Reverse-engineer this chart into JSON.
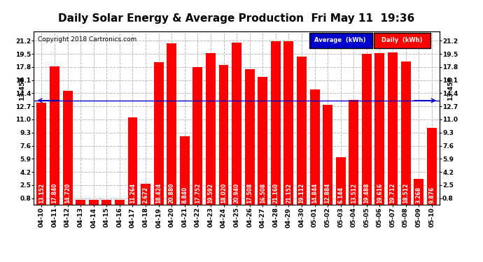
{
  "title": "Daily Solar Energy & Average Production  Fri May 11  19:36",
  "copyright": "Copyright 2018 Cartronics.com",
  "average_label": "13.458",
  "average_value": 13.458,
  "yticks": [
    0.8,
    2.5,
    4.2,
    5.9,
    7.6,
    9.3,
    11.0,
    12.7,
    14.4,
    16.1,
    17.8,
    19.5,
    21.2
  ],
  "ylim": [
    0.0,
    22.4
  ],
  "bar_color": "#FF0000",
  "bg_color": "#FFFFFF",
  "grid_color": "#BBBBBB",
  "avg_line_color": "#0000CC",
  "legend_avg_bg": "#0000CC",
  "legend_daily_bg": "#FF0000",
  "categories": [
    "04-10",
    "04-11",
    "04-12",
    "04-13",
    "04-14",
    "04-15",
    "04-16",
    "04-17",
    "04-18",
    "04-19",
    "04-20",
    "04-21",
    "04-22",
    "04-23",
    "04-24",
    "04-25",
    "04-26",
    "04-27",
    "04-28",
    "04-29",
    "04-30",
    "05-01",
    "05-02",
    "05-03",
    "05-04",
    "05-05",
    "05-06",
    "05-07",
    "05-08",
    "05-09",
    "05-10"
  ],
  "values": [
    13.152,
    17.84,
    14.72,
    0.0,
    0.0,
    0.0,
    0.0,
    11.264,
    2.672,
    18.424,
    20.88,
    8.84,
    17.752,
    19.592,
    18.02,
    20.94,
    17.508,
    16.508,
    21.16,
    21.152,
    19.112,
    14.844,
    12.884,
    6.144,
    13.512,
    19.488,
    19.616,
    19.712,
    18.512,
    3.268,
    9.876
  ],
  "title_fontsize": 11,
  "tick_fontsize": 6.5,
  "bar_value_fontsize": 5.5,
  "copyright_fontsize": 6.5
}
